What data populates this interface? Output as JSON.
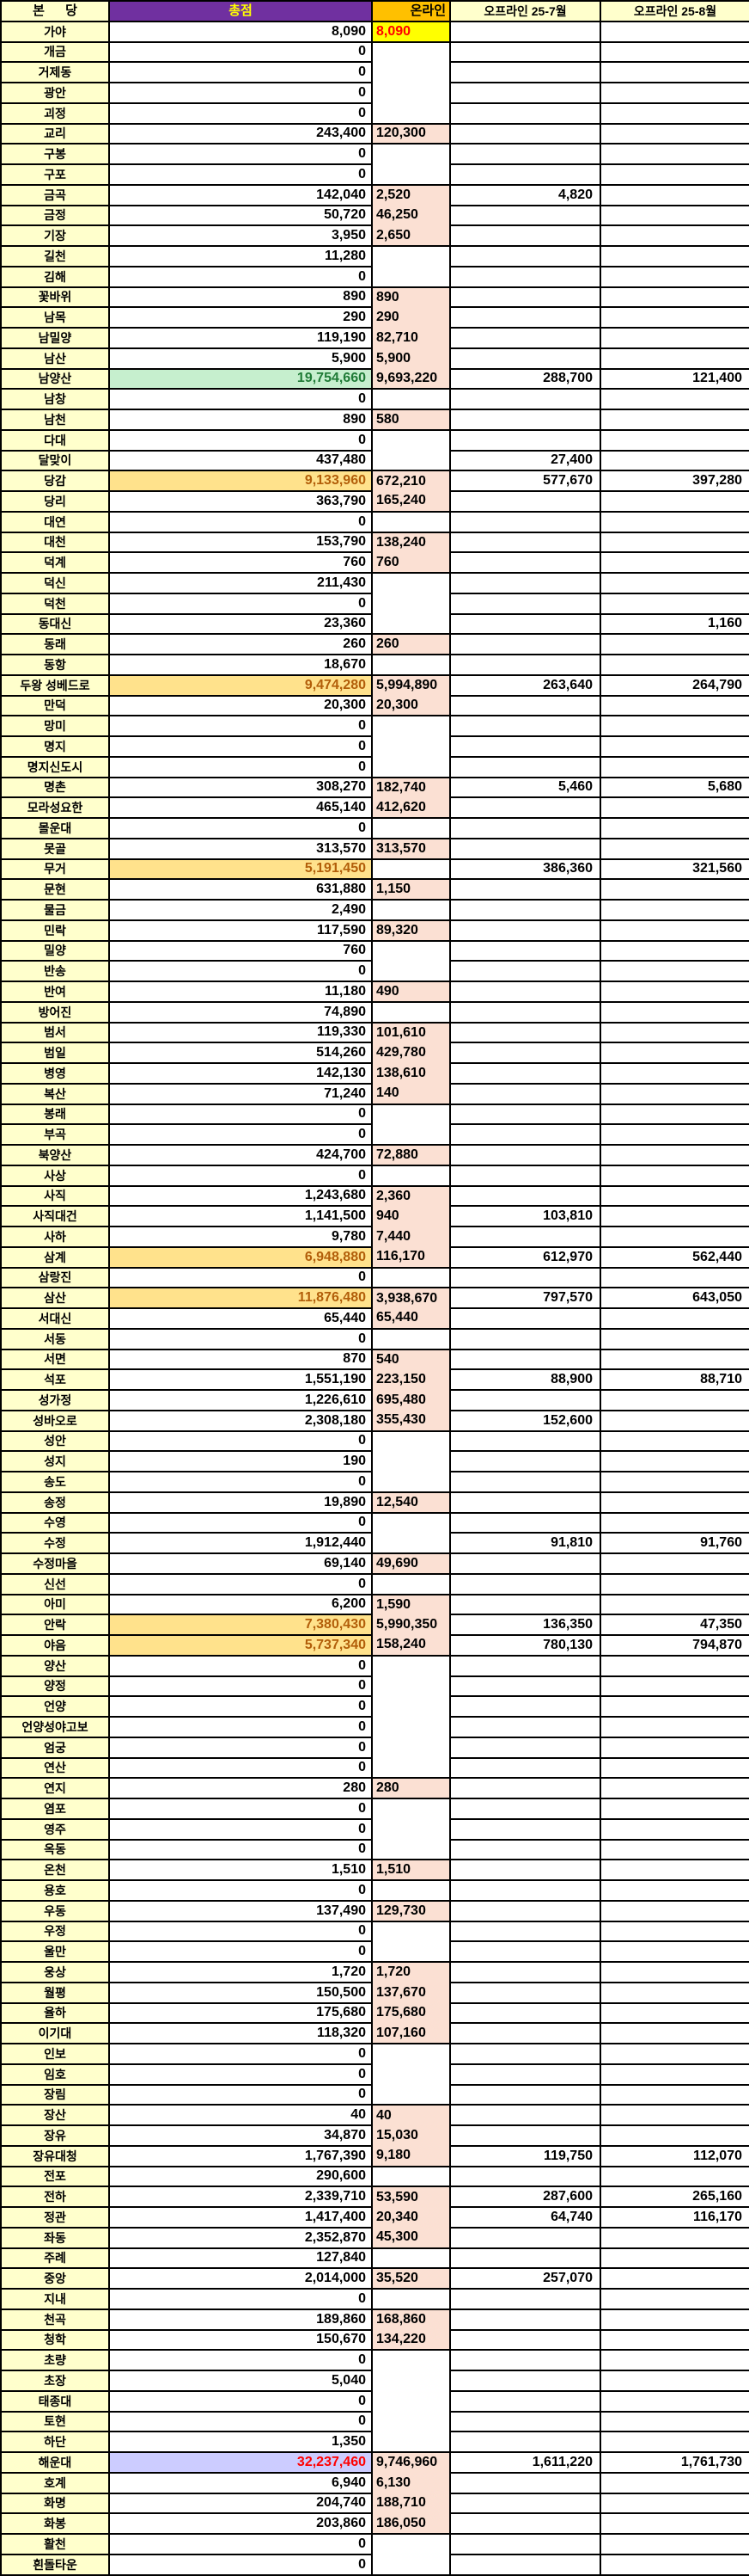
{
  "header": {
    "parish": "본 당",
    "total": "총점",
    "online": "온라인",
    "offline_jul": "오프라인 25-7월",
    "offline_aug": "오프라인 25-8월"
  },
  "colors": {
    "name_bg": "#FFFFCC",
    "total_header_bg": "#7030A0",
    "total_header_text": "#FFFF00",
    "online_header_bg": "#FFC000",
    "online_fill_bg": "#FBE0D3",
    "online_yellow_bg": "#FFFF00",
    "online_yellow_text": "#FF0000",
    "amber_bg": "#FFE28C",
    "amber_text": "#B25E09",
    "green_bg": "#C6EFCE",
    "green_text": "#1F7B36",
    "lavender_bg": "#CCCCFF",
    "lavender_text": "#FF0000",
    "border": "#000000"
  },
  "rows": [
    [
      "가야",
      "8,090",
      "8,090",
      "",
      "",
      "Y"
    ],
    [
      "개금",
      "0",
      "",
      "",
      "",
      ""
    ],
    [
      "거제동",
      "0",
      "",
      "",
      "",
      ""
    ],
    [
      "광안",
      "0",
      "",
      "",
      "",
      ""
    ],
    [
      "괴정",
      "0",
      "",
      "",
      "",
      ""
    ],
    [
      "교리",
      "243,400",
      "120,300",
      "",
      "",
      ""
    ],
    [
      "구봉",
      "0",
      "",
      "",
      "",
      ""
    ],
    [
      "구포",
      "0",
      "",
      "",
      "",
      ""
    ],
    [
      "금곡",
      "142,040",
      "2,520",
      "4,820",
      "",
      ""
    ],
    [
      "금정",
      "50,720",
      "46,250",
      "",
      "",
      ""
    ],
    [
      "기장",
      "3,950",
      "2,650",
      "",
      "",
      ""
    ],
    [
      "길천",
      "11,280",
      "",
      "",
      "",
      ""
    ],
    [
      "김해",
      "0",
      "",
      "",
      "",
      ""
    ],
    [
      "꽃바위",
      "890",
      "890",
      "",
      "",
      ""
    ],
    [
      "남목",
      "290",
      "290",
      "",
      "",
      ""
    ],
    [
      "남밀양",
      "119,190",
      "82,710",
      "",
      "",
      ""
    ],
    [
      "남산",
      "5,900",
      "5,900",
      "",
      "",
      ""
    ],
    [
      "남양산",
      "19,754,660",
      "9,693,220",
      "288,700",
      "121,400",
      "G"
    ],
    [
      "남창",
      "0",
      "",
      "",
      "",
      ""
    ],
    [
      "남천",
      "890",
      "580",
      "",
      "",
      ""
    ],
    [
      "다대",
      "0",
      "",
      "",
      "",
      ""
    ],
    [
      "달맞이",
      "437,480",
      "",
      "27,400",
      "",
      ""
    ],
    [
      "당감",
      "9,133,960",
      "672,210",
      "577,670",
      "397,280",
      "A"
    ],
    [
      "당리",
      "363,790",
      "165,240",
      "",
      "",
      ""
    ],
    [
      "대연",
      "0",
      "",
      "",
      "",
      ""
    ],
    [
      "대천",
      "153,790",
      "138,240",
      "",
      "",
      ""
    ],
    [
      "덕계",
      "760",
      "760",
      "",
      "",
      ""
    ],
    [
      "덕신",
      "211,430",
      "",
      "",
      "",
      ""
    ],
    [
      "덕천",
      "0",
      "",
      "",
      "",
      ""
    ],
    [
      "동대신",
      "23,360",
      "",
      "",
      "1,160",
      ""
    ],
    [
      "동래",
      "260",
      "260",
      "",
      "",
      ""
    ],
    [
      "동항",
      "18,670",
      "",
      "",
      "",
      ""
    ],
    [
      "두왕 성베드로",
      "9,474,280",
      "5,994,890",
      "263,640",
      "264,790",
      "A"
    ],
    [
      "만덕",
      "20,300",
      "20,300",
      "",
      "",
      ""
    ],
    [
      "망미",
      "0",
      "",
      "",
      "",
      ""
    ],
    [
      "명지",
      "0",
      "",
      "",
      "",
      ""
    ],
    [
      "명지신도시",
      "0",
      "",
      "",
      "",
      ""
    ],
    [
      "명촌",
      "308,270",
      "182,740",
      "5,460",
      "5,680",
      ""
    ],
    [
      "모라성요한",
      "465,140",
      "412,620",
      "",
      "",
      ""
    ],
    [
      "몰운대",
      "0",
      "",
      "",
      "",
      ""
    ],
    [
      "못골",
      "313,570",
      "313,570",
      "",
      "",
      ""
    ],
    [
      "무거",
      "5,191,450",
      "",
      "386,360",
      "321,560",
      "A"
    ],
    [
      "문현",
      "631,880",
      "1,150",
      "",
      "",
      ""
    ],
    [
      "물금",
      "2,490",
      "",
      "",
      "",
      ""
    ],
    [
      "민락",
      "117,590",
      "89,320",
      "",
      "",
      ""
    ],
    [
      "밀양",
      "760",
      "",
      "",
      "",
      ""
    ],
    [
      "반송",
      "0",
      "",
      "",
      "",
      ""
    ],
    [
      "반여",
      "11,180",
      "490",
      "",
      "",
      ""
    ],
    [
      "방어진",
      "74,890",
      "",
      "",
      "",
      ""
    ],
    [
      "범서",
      "119,330",
      "101,610",
      "",
      "",
      ""
    ],
    [
      "범일",
      "514,260",
      "429,780",
      "",
      "",
      ""
    ],
    [
      "병영",
      "142,130",
      "138,610",
      "",
      "",
      ""
    ],
    [
      "복산",
      "71,240",
      "140",
      "",
      "",
      ""
    ],
    [
      "봉래",
      "0",
      "",
      "",
      "",
      ""
    ],
    [
      "부곡",
      "0",
      "",
      "",
      "",
      ""
    ],
    [
      "북양산",
      "424,700",
      "72,880",
      "",
      "",
      ""
    ],
    [
      "사상",
      "0",
      "",
      "",
      "",
      ""
    ],
    [
      "사직",
      "1,243,680",
      "2,360",
      "",
      "",
      ""
    ],
    [
      "사직대건",
      "1,141,500",
      "940",
      "103,810",
      "",
      ""
    ],
    [
      "사하",
      "9,780",
      "7,440",
      "",
      "",
      ""
    ],
    [
      "삼계",
      "6,948,880",
      "116,170",
      "612,970",
      "562,440",
      "A"
    ],
    [
      "삼랑진",
      "0",
      "",
      "",
      "",
      ""
    ],
    [
      "삼산",
      "11,876,480",
      "3,938,670",
      "797,570",
      "643,050",
      "A"
    ],
    [
      "서대신",
      "65,440",
      "65,440",
      "",
      "",
      ""
    ],
    [
      "서동",
      "0",
      "",
      "",
      "",
      ""
    ],
    [
      "서면",
      "870",
      "540",
      "",
      "",
      ""
    ],
    [
      "석포",
      "1,551,190",
      "223,150",
      "88,900",
      "88,710",
      ""
    ],
    [
      "성가정",
      "1,226,610",
      "695,480",
      "",
      "",
      ""
    ],
    [
      "성바오로",
      "2,308,180",
      "355,430",
      "152,600",
      "",
      ""
    ],
    [
      "성안",
      "0",
      "",
      "",
      "",
      ""
    ],
    [
      "성지",
      "190",
      "",
      "",
      "",
      ""
    ],
    [
      "송도",
      "0",
      "",
      "",
      "",
      ""
    ],
    [
      "송정",
      "19,890",
      "12,540",
      "",
      "",
      ""
    ],
    [
      "수영",
      "0",
      "",
      "",
      "",
      ""
    ],
    [
      "수정",
      "1,912,440",
      "",
      "91,810",
      "91,760",
      ""
    ],
    [
      "수정마을",
      "69,140",
      "49,690",
      "",
      "",
      ""
    ],
    [
      "신선",
      "0",
      "",
      "",
      "",
      ""
    ],
    [
      "아미",
      "6,200",
      "1,590",
      "",
      "",
      ""
    ],
    [
      "안락",
      "7,380,430",
      "5,990,350",
      "136,350",
      "47,350",
      "A"
    ],
    [
      "야음",
      "5,737,340",
      "158,240",
      "780,130",
      "794,870",
      "A"
    ],
    [
      "양산",
      "0",
      "",
      "",
      "",
      ""
    ],
    [
      "양정",
      "0",
      "",
      "",
      "",
      ""
    ],
    [
      "언양",
      "0",
      "",
      "",
      "",
      ""
    ],
    [
      "언양성야고보",
      "0",
      "",
      "",
      "",
      ""
    ],
    [
      "엄궁",
      "0",
      "",
      "",
      "",
      ""
    ],
    [
      "연산",
      "0",
      "",
      "",
      "",
      ""
    ],
    [
      "연지",
      "280",
      "280",
      "",
      "",
      ""
    ],
    [
      "염포",
      "0",
      "",
      "",
      "",
      ""
    ],
    [
      "영주",
      "0",
      "",
      "",
      "",
      ""
    ],
    [
      "옥동",
      "0",
      "",
      "",
      "",
      ""
    ],
    [
      "온천",
      "1,510",
      "1,510",
      "",
      "",
      ""
    ],
    [
      "용호",
      "0",
      "",
      "",
      "",
      ""
    ],
    [
      "우동",
      "137,490",
      "129,730",
      "",
      "",
      ""
    ],
    [
      "우정",
      "0",
      "",
      "",
      "",
      ""
    ],
    [
      "울만",
      "0",
      "",
      "",
      "",
      ""
    ],
    [
      "웅상",
      "1,720",
      "1,720",
      "",
      "",
      ""
    ],
    [
      "월평",
      "150,500",
      "137,670",
      "",
      "",
      ""
    ],
    [
      "율하",
      "175,680",
      "175,680",
      "",
      "",
      ""
    ],
    [
      "이기대",
      "118,320",
      "107,160",
      "",
      "",
      ""
    ],
    [
      "인보",
      "0",
      "",
      "",
      "",
      ""
    ],
    [
      "임호",
      "0",
      "",
      "",
      "",
      ""
    ],
    [
      "장림",
      "0",
      "",
      "",
      "",
      ""
    ],
    [
      "장산",
      "40",
      "40",
      "",
      "",
      ""
    ],
    [
      "장유",
      "34,870",
      "15,030",
      "",
      "",
      ""
    ],
    [
      "장유대청",
      "1,767,390",
      "9,180",
      "119,750",
      "112,070",
      ""
    ],
    [
      "전포",
      "290,600",
      "",
      "",
      "",
      ""
    ],
    [
      "전하",
      "2,339,710",
      "53,590",
      "287,600",
      "265,160",
      ""
    ],
    [
      "정관",
      "1,417,400",
      "20,340",
      "64,740",
      "116,170",
      ""
    ],
    [
      "좌동",
      "2,352,870",
      "45,300",
      "",
      "",
      ""
    ],
    [
      "주례",
      "127,840",
      "",
      "",
      "",
      ""
    ],
    [
      "중앙",
      "2,014,000",
      "35,520",
      "257,070",
      "",
      ""
    ],
    [
      "지내",
      "0",
      "",
      "",
      "",
      ""
    ],
    [
      "천곡",
      "189,860",
      "168,860",
      "",
      "",
      ""
    ],
    [
      "청학",
      "150,670",
      "134,220",
      "",
      "",
      ""
    ],
    [
      "초량",
      "0",
      "",
      "",
      "",
      ""
    ],
    [
      "초장",
      "5,040",
      "",
      "",
      "",
      ""
    ],
    [
      "태종대",
      "0",
      "",
      "",
      "",
      ""
    ],
    [
      "토현",
      "0",
      "",
      "",
      "",
      ""
    ],
    [
      "하단",
      "1,350",
      "",
      "",
      "",
      ""
    ],
    [
      "해운대",
      "32,237,460",
      "9,746,960",
      "1,611,220",
      "1,761,730",
      "L"
    ],
    [
      "호계",
      "6,940",
      "6,130",
      "",
      "",
      ""
    ],
    [
      "화명",
      "204,740",
      "188,710",
      "",
      "",
      ""
    ],
    [
      "화봉",
      "203,860",
      "186,050",
      "",
      "",
      ""
    ],
    [
      "활천",
      "0",
      "",
      "",
      "",
      ""
    ],
    [
      "흰돌타운",
      "0",
      "",
      "",
      "",
      ""
    ]
  ]
}
